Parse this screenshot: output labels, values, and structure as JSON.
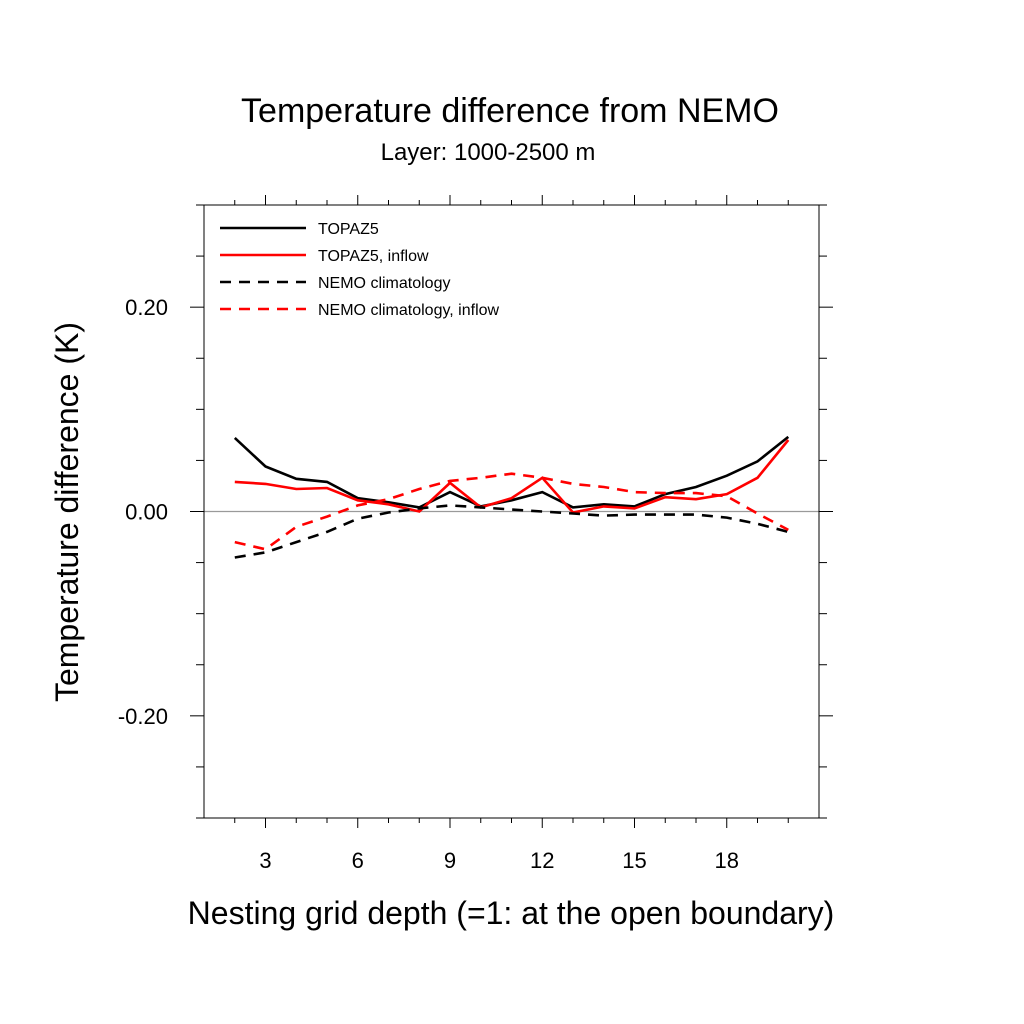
{
  "chart_data": {
    "type": "line",
    "title": "Temperature difference from NEMO",
    "subtitle": "Layer: 1000-2500 m",
    "xlabel": "Nesting grid depth (=1: at the open boundary)",
    "ylabel": "Temperature difference (K)",
    "xlim": [
      1,
      21
    ],
    "ylim": [
      -0.3,
      0.3
    ],
    "x_major_ticks": [
      3,
      6,
      9,
      12,
      15,
      18
    ],
    "x_tick_labels": [
      "3",
      "6",
      "9",
      "12",
      "15",
      "18"
    ],
    "y_major_ticks": [
      -0.2,
      0.0,
      0.2
    ],
    "y_tick_labels": [
      "-0.20",
      "0.00",
      "0.20"
    ],
    "zero_line": true,
    "grid": false,
    "legend_position": "top-left",
    "x": [
      2,
      3,
      4,
      5,
      6,
      7,
      8,
      9,
      10,
      11,
      12,
      13,
      14,
      15,
      16,
      17,
      18,
      19,
      20
    ],
    "series": [
      {
        "name": "TOPAZ5",
        "color": "#000000",
        "dash": "solid",
        "values": [
          0.072,
          0.044,
          0.032,
          0.029,
          0.013,
          0.009,
          0.004,
          0.019,
          0.005,
          0.011,
          0.019,
          0.004,
          0.007,
          0.005,
          0.017,
          0.024,
          0.035,
          0.049,
          0.073
        ]
      },
      {
        "name": "TOPAZ5, inflow",
        "color": "#ff0000",
        "dash": "solid",
        "values": [
          0.029,
          0.027,
          0.022,
          0.023,
          0.011,
          0.007,
          0.0,
          0.028,
          0.004,
          0.013,
          0.033,
          -0.001,
          0.005,
          0.003,
          0.014,
          0.012,
          0.017,
          0.033,
          0.07
        ]
      },
      {
        "name": "NEMO climatology",
        "color": "#000000",
        "dash": "dashed",
        "values": [
          -0.045,
          -0.04,
          -0.03,
          -0.02,
          -0.007,
          -0.001,
          0.003,
          0.006,
          0.004,
          0.002,
          0.0,
          -0.002,
          -0.004,
          -0.003,
          -0.003,
          -0.003,
          -0.006,
          -0.012,
          -0.02
        ]
      },
      {
        "name": "NEMO climatology, inflow",
        "color": "#ff0000",
        "dash": "dashed",
        "values": [
          -0.03,
          -0.037,
          -0.015,
          -0.005,
          0.006,
          0.012,
          0.022,
          0.03,
          0.033,
          0.037,
          0.033,
          0.027,
          0.024,
          0.019,
          0.018,
          0.018,
          0.015,
          -0.002,
          -0.018
        ]
      }
    ]
  }
}
